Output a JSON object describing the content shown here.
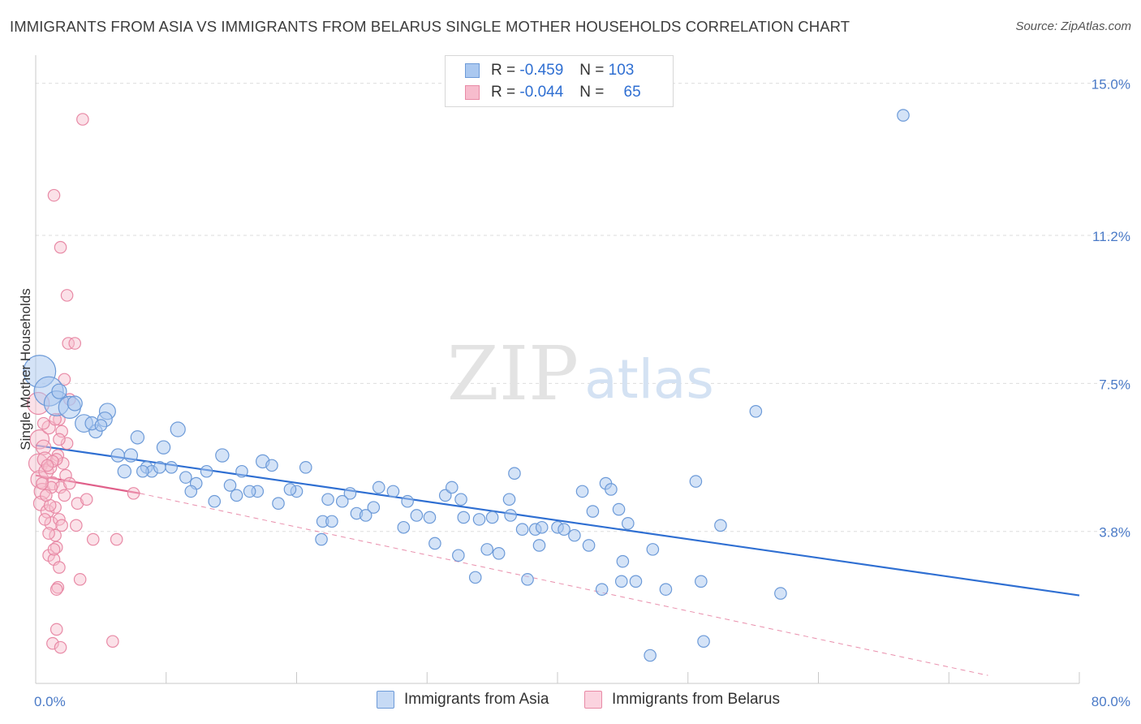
{
  "title": "IMMIGRANTS FROM ASIA VS IMMIGRANTS FROM BELARUS SINGLE MOTHER HOUSEHOLDS CORRELATION CHART",
  "source": "Source: ZipAtlas.com",
  "watermark": {
    "zip": "ZIP",
    "atlas": "atlas"
  },
  "legend": {
    "rows": [
      {
        "r_label": "R =",
        "r_value": "-0.459",
        "n_label": "N =",
        "n_value": "103"
      },
      {
        "r_label": "R =",
        "r_value": "-0.044",
        "n_label": "N =",
        "n_value": "65"
      }
    ]
  },
  "colors": {
    "asia_fill": "#aac8f0",
    "asia_stroke": "#6c9ad8",
    "asia_line": "#2f6fd2",
    "belarus_fill": "#f7bccd",
    "belarus_stroke": "#e88aa6",
    "belarus_line": "#e0608a",
    "grid": "#dddddd",
    "tick_text": "#4a7ac7"
  },
  "chart_data": {
    "type": "scatter",
    "title": "IMMIGRANTS FROM ASIA VS IMMIGRANTS FROM BELARUS SINGLE MOTHER HOUSEHOLDS CORRELATION CHART",
    "xlabel": "",
    "ylabel": "Single Mother Households",
    "xlim": [
      0,
      80
    ],
    "ylim": [
      0,
      15.5
    ],
    "x_tick_labels": [
      "0.0%",
      "80.0%"
    ],
    "y_ticks": [
      3.8,
      7.5,
      11.2,
      15.0
    ],
    "y_tick_labels": [
      "3.8%",
      "7.5%",
      "11.2%",
      "15.0%"
    ],
    "grid": true,
    "legend_position": "top-center",
    "series": [
      {
        "name": "Immigrants from Asia",
        "trend": [
          [
            0,
            5.95
          ],
          [
            80,
            2.2
          ]
        ],
        "points": [
          [
            0.3,
            7.8,
            2.2
          ],
          [
            1.0,
            7.3,
            2.0
          ],
          [
            1.6,
            7.0,
            1.7
          ],
          [
            2.6,
            6.9,
            1.5
          ],
          [
            5.5,
            6.8,
            1.1
          ],
          [
            5.3,
            6.6,
            1.0
          ],
          [
            3.7,
            6.5,
            1.2
          ],
          [
            4.6,
            6.3,
            0.9
          ],
          [
            10.9,
            6.35,
            1.0
          ],
          [
            7.8,
            6.15,
            0.9
          ],
          [
            9.8,
            5.9,
            0.9
          ],
          [
            6.3,
            5.7,
            0.9
          ],
          [
            7.3,
            5.7,
            0.9
          ],
          [
            14.3,
            5.7,
            0.9
          ],
          [
            17.4,
            5.55,
            0.9
          ],
          [
            8.5,
            5.4,
            0.8
          ],
          [
            8.9,
            5.3,
            0.8
          ],
          [
            10.4,
            5.4,
            0.8
          ],
          [
            6.8,
            5.3,
            0.9
          ],
          [
            8.2,
            5.3,
            0.8
          ],
          [
            13.1,
            5.3,
            0.8
          ],
          [
            15.8,
            5.3,
            0.8
          ],
          [
            18.1,
            5.45,
            0.8
          ],
          [
            20.7,
            5.4,
            0.8
          ],
          [
            11.5,
            5.15,
            0.8
          ],
          [
            12.3,
            5.0,
            0.8
          ],
          [
            14.9,
            4.95,
            0.8
          ],
          [
            17.0,
            4.8,
            0.8
          ],
          [
            20.0,
            4.8,
            0.8
          ],
          [
            22.4,
            4.6,
            0.8
          ],
          [
            11.9,
            4.8,
            0.8
          ],
          [
            13.7,
            4.55,
            0.8
          ],
          [
            15.4,
            4.7,
            0.8
          ],
          [
            16.4,
            4.8,
            0.8
          ],
          [
            18.6,
            4.5,
            0.8
          ],
          [
            19.5,
            4.85,
            0.8
          ],
          [
            24.1,
            4.75,
            0.8
          ],
          [
            23.5,
            4.55,
            0.8
          ],
          [
            25.9,
            4.4,
            0.8
          ],
          [
            26.3,
            4.9,
            0.8
          ],
          [
            28.5,
            4.55,
            0.8
          ],
          [
            29.2,
            4.2,
            0.8
          ],
          [
            30.2,
            4.15,
            0.8
          ],
          [
            31.4,
            4.7,
            0.8
          ],
          [
            31.9,
            4.9,
            0.8
          ],
          [
            32.6,
            4.6,
            0.8
          ],
          [
            24.6,
            4.25,
            0.8
          ],
          [
            25.3,
            4.2,
            0.8
          ],
          [
            27.4,
            4.8,
            0.8
          ],
          [
            22.0,
            4.05,
            0.8
          ],
          [
            22.7,
            4.05,
            0.8
          ],
          [
            21.9,
            3.6,
            0.8
          ],
          [
            28.2,
            3.9,
            0.8
          ],
          [
            30.6,
            3.5,
            0.8
          ],
          [
            32.8,
            4.15,
            0.8
          ],
          [
            34.0,
            4.1,
            0.8
          ],
          [
            35.0,
            4.15,
            0.8
          ],
          [
            36.4,
            4.2,
            0.8
          ],
          [
            36.3,
            4.6,
            0.8
          ],
          [
            36.7,
            5.25,
            0.8
          ],
          [
            32.4,
            3.2,
            0.8
          ],
          [
            34.6,
            3.35,
            0.8
          ],
          [
            35.5,
            3.25,
            0.8
          ],
          [
            33.7,
            2.65,
            0.8
          ],
          [
            37.3,
            3.85,
            0.8
          ],
          [
            37.7,
            2.6,
            0.8
          ],
          [
            38.3,
            3.85,
            0.8
          ],
          [
            38.8,
            3.9,
            0.8
          ],
          [
            38.6,
            3.45,
            0.8
          ],
          [
            40.0,
            3.9,
            0.8
          ],
          [
            40.5,
            3.85,
            0.8
          ],
          [
            41.3,
            3.7,
            0.8
          ],
          [
            42.4,
            3.45,
            0.8
          ],
          [
            42.7,
            4.3,
            0.8
          ],
          [
            41.9,
            4.8,
            0.8
          ],
          [
            43.7,
            5.0,
            0.8
          ],
          [
            44.1,
            4.85,
            0.8
          ],
          [
            44.7,
            4.35,
            0.8
          ],
          [
            45.4,
            4.0,
            0.8
          ],
          [
            45.0,
            3.05,
            0.8
          ],
          [
            43.4,
            2.35,
            0.8
          ],
          [
            44.9,
            2.55,
            0.8
          ],
          [
            46.0,
            2.55,
            0.8
          ],
          [
            47.3,
            3.35,
            0.8
          ],
          [
            48.3,
            2.35,
            0.8
          ],
          [
            50.6,
            5.05,
            0.8
          ],
          [
            51.0,
            2.55,
            0.8
          ],
          [
            52.5,
            3.95,
            0.8
          ],
          [
            57.1,
            2.25,
            0.8
          ],
          [
            47.1,
            0.7,
            0.8
          ],
          [
            51.2,
            1.05,
            0.8
          ],
          [
            55.2,
            6.8,
            0.8
          ],
          [
            66.5,
            14.2,
            0.8
          ],
          [
            4.3,
            6.5,
            0.9
          ],
          [
            5.0,
            6.45,
            0.8
          ],
          [
            3.0,
            7.0,
            1.0
          ],
          [
            1.8,
            7.3,
            1.0
          ],
          [
            9.5,
            5.4,
            0.8
          ]
        ]
      },
      {
        "name": "Immigrants from Belarus",
        "trend_solid": [
          [
            0,
            5.2
          ],
          [
            8,
            4.75
          ]
        ],
        "trend_dashed": [
          [
            8,
            4.75
          ],
          [
            73,
            0.2
          ]
        ],
        "points": [
          [
            0.2,
            7.0,
            1.5
          ],
          [
            0.3,
            6.1,
            1.3
          ],
          [
            0.2,
            5.5,
            1.3
          ],
          [
            0.3,
            5.1,
            1.2
          ],
          [
            0.5,
            4.8,
            1.1
          ],
          [
            0.4,
            4.5,
            1.0
          ],
          [
            0.6,
            5.9,
            1.0
          ],
          [
            0.7,
            5.6,
            1.0
          ],
          [
            0.8,
            5.3,
            1.0
          ],
          [
            1.0,
            6.4,
            0.9
          ],
          [
            1.1,
            5.4,
            0.9
          ],
          [
            1.3,
            5.0,
            0.9
          ],
          [
            0.9,
            4.3,
            0.9
          ],
          [
            1.2,
            4.0,
            0.9
          ],
          [
            1.5,
            3.7,
            0.8
          ],
          [
            1.6,
            3.4,
            0.8
          ],
          [
            1.0,
            3.2,
            0.8
          ],
          [
            1.4,
            3.1,
            0.8
          ],
          [
            1.8,
            2.9,
            0.8
          ],
          [
            1.7,
            2.4,
            0.8
          ],
          [
            1.6,
            1.35,
            0.8
          ],
          [
            1.3,
            1.0,
            0.8
          ],
          [
            1.9,
            0.9,
            0.8
          ],
          [
            5.9,
            1.05,
            0.8
          ],
          [
            1.4,
            12.2,
            0.8
          ],
          [
            3.6,
            14.1,
            0.8
          ],
          [
            1.9,
            10.9,
            0.8
          ],
          [
            2.4,
            9.7,
            0.8
          ],
          [
            2.5,
            8.5,
            0.8
          ],
          [
            3.0,
            8.5,
            0.8
          ],
          [
            2.2,
            7.6,
            0.8
          ],
          [
            2.6,
            7.1,
            0.8
          ],
          [
            1.8,
            6.6,
            0.8
          ],
          [
            2.0,
            6.3,
            0.8
          ],
          [
            2.4,
            6.0,
            0.8
          ],
          [
            1.7,
            5.7,
            0.8
          ],
          [
            2.1,
            5.5,
            0.8
          ],
          [
            2.3,
            5.2,
            0.8
          ],
          [
            1.9,
            4.9,
            0.8
          ],
          [
            2.2,
            4.7,
            0.8
          ],
          [
            1.5,
            4.4,
            0.8
          ],
          [
            1.8,
            4.1,
            0.8
          ],
          [
            2.0,
            3.95,
            0.8
          ],
          [
            3.2,
            4.5,
            0.8
          ],
          [
            3.9,
            4.6,
            0.8
          ],
          [
            3.1,
            3.95,
            0.8
          ],
          [
            4.4,
            3.6,
            0.8
          ],
          [
            6.2,
            3.6,
            0.8
          ],
          [
            3.4,
            2.6,
            0.8
          ],
          [
            7.5,
            4.75,
            0.8
          ],
          [
            1.6,
            5.6,
            0.8
          ],
          [
            1.3,
            5.55,
            0.8
          ],
          [
            0.9,
            5.45,
            0.8
          ],
          [
            1.2,
            4.9,
            0.8
          ],
          [
            0.7,
            4.1,
            0.8
          ],
          [
            1.0,
            3.75,
            0.8
          ],
          [
            1.5,
            6.6,
            0.8
          ],
          [
            1.8,
            6.1,
            0.8
          ],
          [
            0.6,
            6.5,
            0.8
          ],
          [
            0.5,
            5.0,
            0.8
          ],
          [
            1.1,
            4.45,
            0.8
          ],
          [
            1.4,
            3.35,
            0.8
          ],
          [
            1.6,
            2.35,
            0.8
          ],
          [
            2.6,
            5.0,
            0.8
          ],
          [
            0.8,
            4.7,
            0.8
          ]
        ]
      }
    ]
  },
  "bottom_legend": [
    {
      "label": "Immigrants from Asia"
    },
    {
      "label": "Immigrants from Belarus"
    }
  ]
}
